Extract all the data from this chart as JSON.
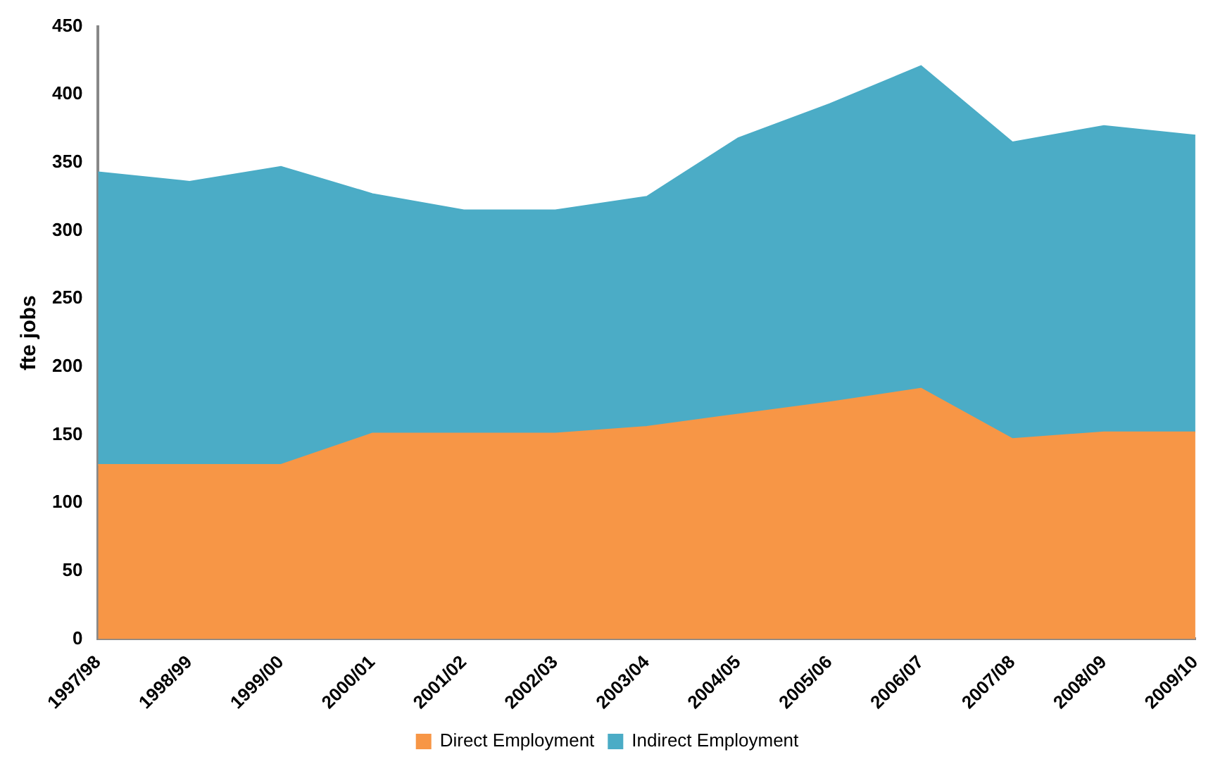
{
  "chart_data": {
    "type": "area",
    "ylabel": "fte jobs",
    "stacked": true,
    "categories": [
      "1997/98",
      "1998/99",
      "1999/00",
      "2000/01",
      "2001/02",
      "2002/03",
      "2003/04",
      "2004/05",
      "2005/06",
      "2006/07",
      "2007/08",
      "2008/09",
      "2009/10"
    ],
    "series": [
      {
        "name": "Direct Employment",
        "color": "#f79646",
        "values": [
          128,
          128,
          128,
          151,
          151,
          151,
          156,
          165,
          174,
          184,
          147,
          152,
          152
        ]
      },
      {
        "name": "Indirect Employment",
        "color": "#4bacc6",
        "values": [
          215,
          208,
          219,
          176,
          164,
          164,
          169,
          203,
          219,
          237,
          218,
          225,
          218
        ]
      }
    ],
    "ylim": [
      0,
      450
    ],
    "yticks": [
      0,
      50,
      100,
      150,
      200,
      250,
      300,
      350,
      400,
      450
    ],
    "grid": false,
    "legend": "bottom",
    "marker": "none"
  }
}
